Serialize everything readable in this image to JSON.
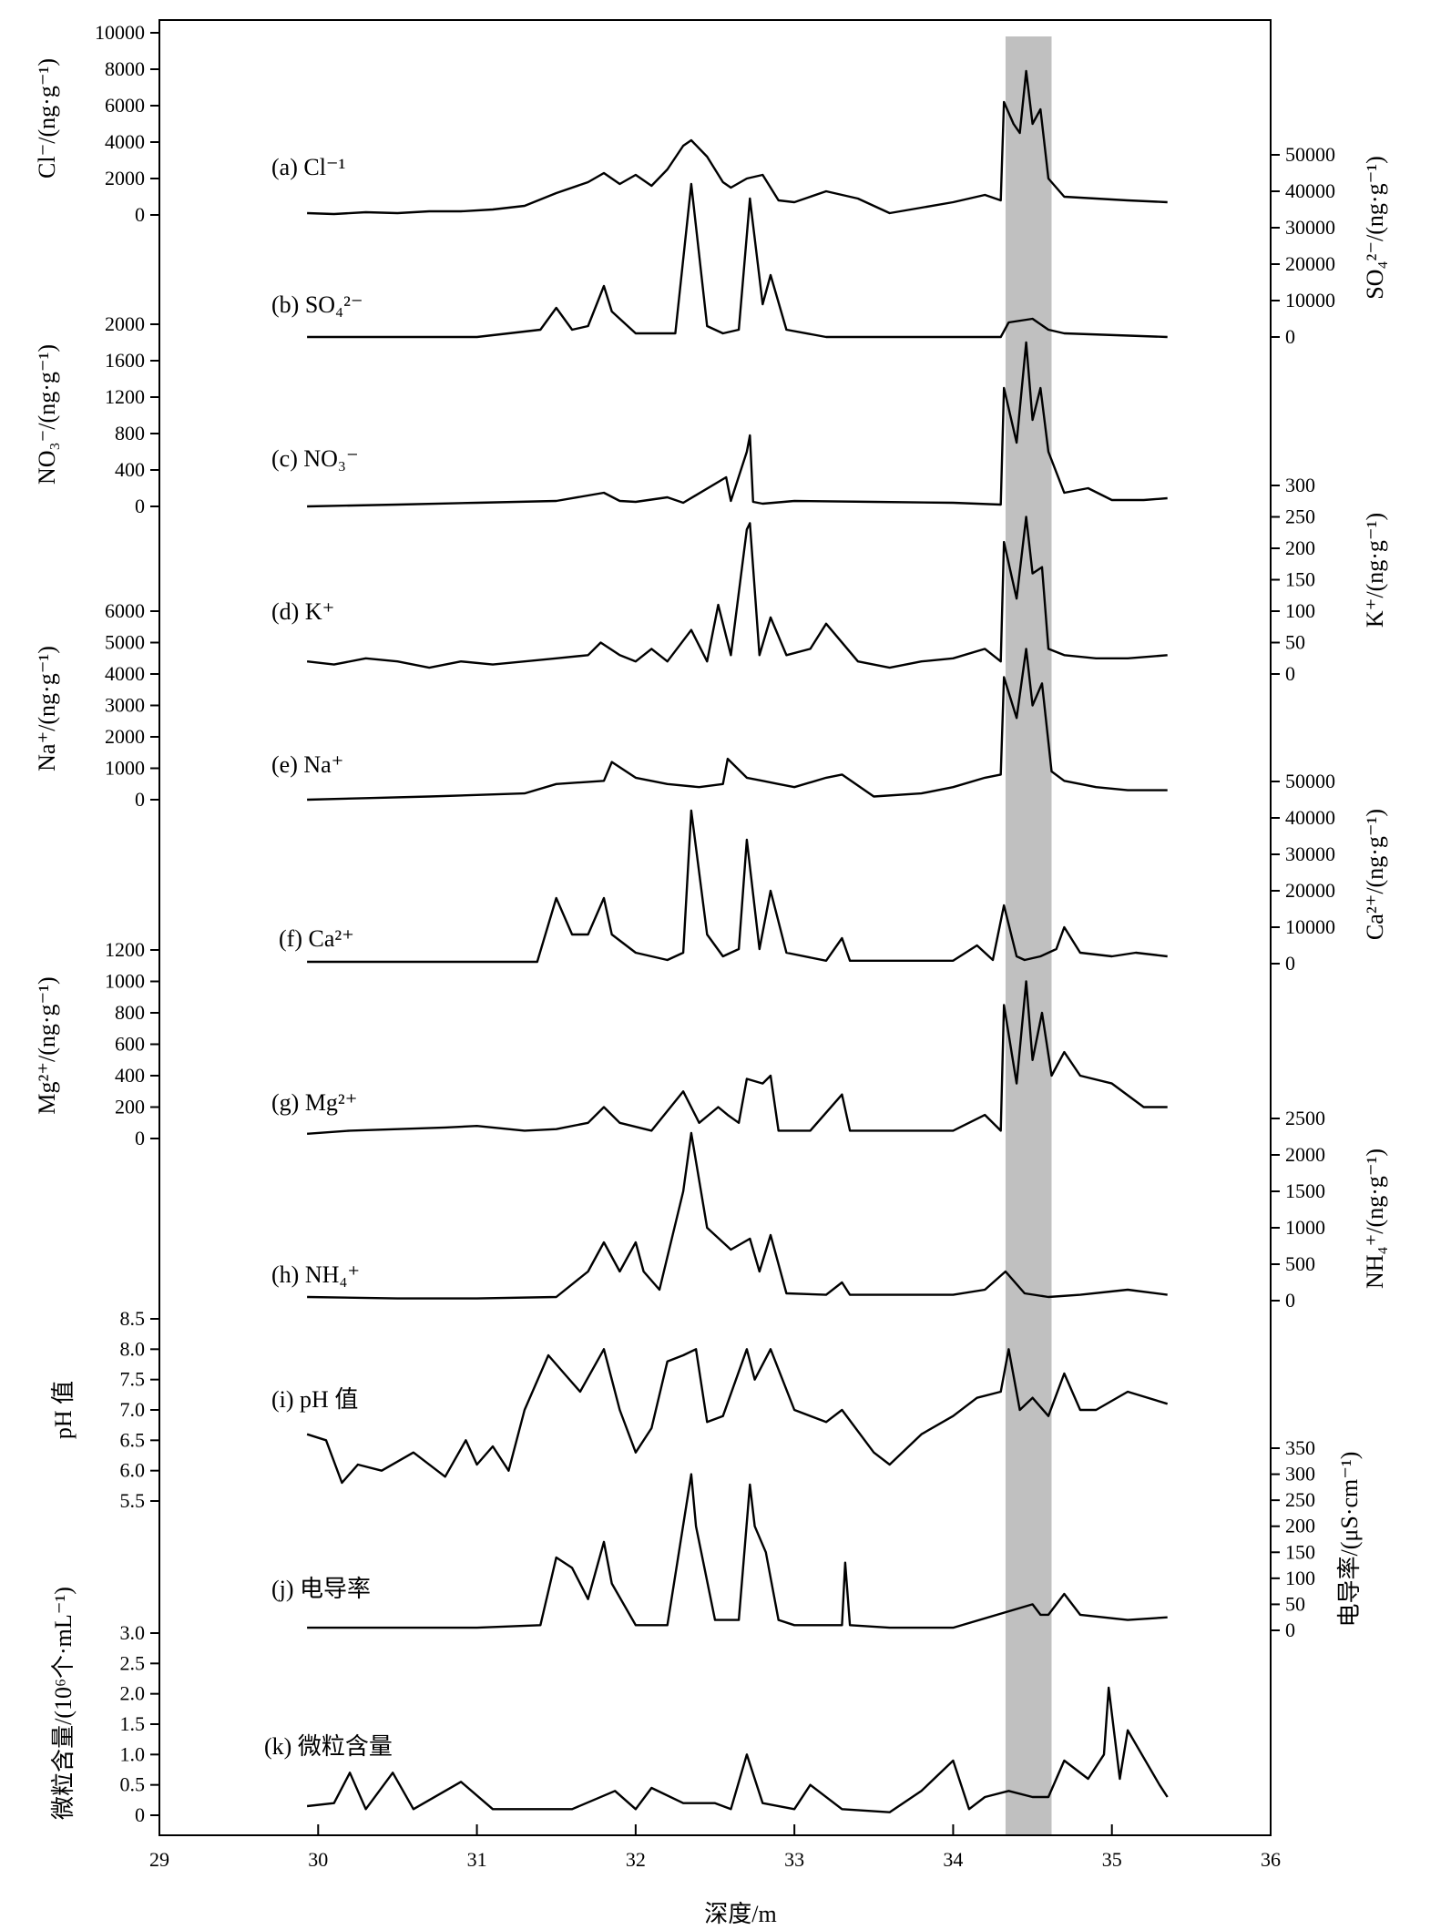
{
  "chart_data": {
    "type": "line",
    "xlabel": "深度/m",
    "xlim": [
      29,
      36
    ],
    "xticks": [
      "29",
      "30",
      "31",
      "32",
      "33",
      "34",
      "35",
      "36"
    ],
    "highlight": {
      "from": 34.33,
      "to": 34.62,
      "color": "#c0c0c0"
    },
    "line_color": "#000000",
    "series": [
      {
        "label": "(a) Cl⁻¹",
        "axis_label": "Cl⁻/(ng·g⁻¹)",
        "side": "left",
        "ticks": [
          "0",
          "2000",
          "4000",
          "6000",
          "8000",
          "10000"
        ],
        "ylim": [
          0,
          10000
        ],
        "x": [
          29.93,
          30.1,
          30.3,
          30.5,
          30.7,
          30.9,
          31.1,
          31.3,
          31.5,
          31.7,
          31.8,
          31.9,
          32.0,
          32.1,
          32.2,
          32.3,
          32.35,
          32.45,
          32.55,
          32.6,
          32.7,
          32.8,
          32.9,
          33.0,
          33.2,
          33.4,
          33.6,
          33.8,
          34.0,
          34.2,
          34.3,
          34.32,
          34.38,
          34.42,
          34.46,
          34.5,
          34.55,
          34.6,
          34.7,
          34.9,
          35.1,
          35.35
        ],
        "values": [
          100,
          50,
          150,
          100,
          200,
          200,
          300,
          500,
          1200,
          1800,
          2300,
          1700,
          2200,
          1600,
          2500,
          3800,
          4100,
          3200,
          1800,
          1500,
          2000,
          2200,
          800,
          700,
          1300,
          900,
          100,
          400,
          700,
          1100,
          800,
          6200,
          5000,
          4500,
          7900,
          5000,
          5800,
          2000,
          1000,
          900,
          800,
          700
        ]
      },
      {
        "label": "(b) SO₄²⁻",
        "axis_label": "SO₄²⁻/(ng·g⁻¹)",
        "side": "right",
        "ticks": [
          "0",
          "10000",
          "20000",
          "30000",
          "40000",
          "50000"
        ],
        "ylim": [
          0,
          50000
        ],
        "x": [
          29.93,
          31.0,
          31.4,
          31.5,
          31.6,
          31.7,
          31.8,
          31.85,
          32.0,
          32.25,
          32.35,
          32.45,
          32.55,
          32.65,
          32.72,
          32.8,
          32.85,
          32.95,
          33.2,
          34.0,
          34.3,
          34.35,
          34.5,
          34.6,
          34.7,
          35.35
        ],
        "values": [
          0,
          0,
          2000,
          8000,
          2000,
          3000,
          14000,
          7000,
          1000,
          1000,
          42000,
          3000,
          1000,
          2000,
          38000,
          9000,
          17000,
          2000,
          0,
          0,
          0,
          4000,
          5000,
          2000,
          1000,
          0
        ]
      },
      {
        "label": "(c) NO₃⁻",
        "axis_label": "NO₃⁻/(ng·g⁻¹)",
        "side": "left",
        "ticks": [
          "0",
          "400",
          "800",
          "1200",
          "1600",
          "2000"
        ],
        "ylim": [
          0,
          2000
        ],
        "x": [
          29.93,
          30.5,
          31.0,
          31.5,
          31.8,
          31.9,
          32.0,
          32.2,
          32.3,
          32.57,
          32.6,
          32.7,
          32.72,
          32.74,
          32.8,
          33.0,
          33.5,
          34.0,
          34.3,
          34.32,
          34.4,
          34.46,
          34.5,
          34.55,
          34.6,
          34.7,
          34.85,
          35.0,
          35.2,
          35.35
        ],
        "values": [
          0,
          20,
          40,
          60,
          150,
          60,
          50,
          100,
          40,
          320,
          60,
          600,
          780,
          50,
          30,
          60,
          50,
          40,
          20,
          1300,
          700,
          1800,
          950,
          1300,
          600,
          150,
          200,
          70,
          70,
          90
        ]
      },
      {
        "label": "(d) K⁺",
        "axis_label": "K⁺/(ng·g⁻¹)",
        "side": "right",
        "ticks": [
          "0",
          "50",
          "100",
          "150",
          "200",
          "250",
          "300"
        ],
        "ylim": [
          0,
          300
        ],
        "x": [
          29.93,
          30.1,
          30.3,
          30.5,
          30.7,
          30.9,
          31.1,
          31.3,
          31.5,
          31.7,
          31.78,
          31.9,
          32.0,
          32.1,
          32.2,
          32.35,
          32.45,
          32.52,
          32.6,
          32.7,
          32.72,
          32.78,
          32.85,
          32.95,
          33.1,
          33.2,
          33.4,
          33.6,
          33.8,
          34.0,
          34.2,
          34.3,
          34.32,
          34.4,
          34.46,
          34.5,
          34.56,
          34.6,
          34.7,
          34.9,
          35.1,
          35.35
        ],
        "values": [
          20,
          15,
          25,
          20,
          10,
          20,
          15,
          20,
          25,
          30,
          50,
          30,
          20,
          40,
          20,
          70,
          20,
          110,
          30,
          230,
          240,
          30,
          90,
          30,
          40,
          80,
          20,
          10,
          20,
          25,
          40,
          20,
          210,
          120,
          250,
          160,
          170,
          40,
          30,
          25,
          25,
          30
        ]
      },
      {
        "label": "(e) Na⁺",
        "axis_label": "Na⁺/(ng·g⁻¹)",
        "side": "left",
        "ticks": [
          "0",
          "1000",
          "2000",
          "3000",
          "4000",
          "5000",
          "6000"
        ],
        "ylim": [
          0,
          6000
        ],
        "x": [
          29.93,
          30.3,
          30.7,
          31.0,
          31.3,
          31.5,
          31.8,
          31.85,
          32.0,
          32.2,
          32.4,
          32.55,
          32.58,
          32.7,
          32.8,
          32.9,
          33.0,
          33.2,
          33.3,
          33.5,
          33.8,
          34.0,
          34.2,
          34.3,
          34.32,
          34.4,
          34.46,
          34.5,
          34.56,
          34.62,
          34.7,
          34.9,
          35.1,
          35.35
        ],
        "values": [
          0,
          50,
          100,
          150,
          200,
          500,
          600,
          1200,
          700,
          500,
          400,
          500,
          1300,
          700,
          600,
          500,
          400,
          700,
          800,
          100,
          200,
          400,
          700,
          800,
          3900,
          2600,
          4800,
          3000,
          3700,
          900,
          600,
          400,
          300,
          300
        ]
      },
      {
        "label": "(f) Ca²⁺",
        "axis_label": "Ca²⁺/(ng·g⁻¹)",
        "side": "right",
        "ticks": [
          "0",
          "10000",
          "20000",
          "30000",
          "40000",
          "50000"
        ],
        "ylim": [
          0,
          50000
        ],
        "x": [
          29.93,
          30.5,
          31.0,
          31.38,
          31.5,
          31.6,
          31.7,
          31.8,
          31.85,
          32.0,
          32.2,
          32.3,
          32.35,
          32.45,
          32.55,
          32.65,
          32.7,
          32.78,
          32.85,
          32.95,
          33.2,
          33.3,
          33.35,
          34.0,
          34.15,
          34.25,
          34.32,
          34.4,
          34.45,
          34.55,
          34.65,
          34.7,
          34.8,
          35.0,
          35.15,
          35.35
        ],
        "values": [
          500,
          500,
          500,
          500,
          18000,
          8000,
          8000,
          18000,
          8000,
          3000,
          1000,
          3000,
          42000,
          8000,
          2000,
          4000,
          34000,
          4000,
          20000,
          3000,
          800,
          7000,
          800,
          800,
          5000,
          1000,
          16000,
          2000,
          1000,
          2000,
          4000,
          10000,
          3000,
          2000,
          3000,
          2000
        ]
      },
      {
        "label": "(g) Mg²⁺",
        "axis_label": "Mg²⁺/(ng·g⁻¹)",
        "side": "left",
        "ticks": [
          "0",
          "200",
          "400",
          "600",
          "800",
          "1000",
          "1200"
        ],
        "ylim": [
          0,
          1200
        ],
        "x": [
          29.93,
          30.2,
          30.5,
          30.8,
          31.0,
          31.3,
          31.5,
          31.7,
          31.8,
          31.9,
          32.1,
          32.3,
          32.4,
          32.52,
          32.58,
          32.65,
          32.7,
          32.8,
          32.85,
          32.9,
          33.1,
          33.3,
          33.35,
          33.6,
          34.0,
          34.2,
          34.3,
          34.32,
          34.4,
          34.46,
          34.5,
          34.56,
          34.62,
          34.7,
          34.8,
          35.0,
          35.2,
          35.35
        ],
        "values": [
          30,
          50,
          60,
          70,
          80,
          50,
          60,
          100,
          200,
          100,
          50,
          300,
          100,
          200,
          150,
          100,
          380,
          350,
          400,
          50,
          50,
          280,
          50,
          50,
          50,
          150,
          50,
          850,
          350,
          1000,
          500,
          800,
          400,
          550,
          400,
          350,
          200,
          200
        ]
      },
      {
        "label": "(h) NH₄⁺",
        "axis_label": "NH₄⁺/(ng·g⁻¹)",
        "side": "right",
        "ticks": [
          "0",
          "500",
          "1000",
          "1500",
          "2000",
          "2500"
        ],
        "ylim": [
          0,
          2500
        ],
        "x": [
          29.93,
          30.5,
          31.0,
          31.5,
          31.7,
          31.8,
          31.9,
          32.0,
          32.05,
          32.15,
          32.3,
          32.35,
          32.45,
          32.6,
          32.72,
          32.78,
          32.85,
          32.95,
          33.2,
          33.3,
          33.35,
          34.0,
          34.2,
          34.33,
          34.45,
          34.6,
          34.8,
          35.1,
          35.35
        ],
        "values": [
          50,
          30,
          30,
          50,
          400,
          800,
          400,
          800,
          400,
          150,
          1500,
          2300,
          1000,
          700,
          850,
          400,
          900,
          100,
          80,
          250,
          80,
          80,
          150,
          400,
          100,
          50,
          80,
          150,
          80
        ]
      },
      {
        "label": "(i) pH 值",
        "axis_label": "pH 值",
        "side": "left",
        "ticks": [
          "5.5",
          "6.0",
          "6.5",
          "7.0",
          "7.5",
          "8.0",
          "8.5"
        ],
        "ylim": [
          5.5,
          8.5
        ],
        "x": [
          29.93,
          30.05,
          30.15,
          30.25,
          30.4,
          30.6,
          30.8,
          30.93,
          31.0,
          31.1,
          31.2,
          31.3,
          31.45,
          31.55,
          31.65,
          31.8,
          31.9,
          32.0,
          32.1,
          32.2,
          32.3,
          32.38,
          32.45,
          32.55,
          32.7,
          32.75,
          32.85,
          33.0,
          33.2,
          33.3,
          33.5,
          33.6,
          33.8,
          34.0,
          34.15,
          34.3,
          34.35,
          34.42,
          34.5,
          34.6,
          34.7,
          34.8,
          34.9,
          35.1,
          35.35
        ],
        "values": [
          6.6,
          6.5,
          5.8,
          6.1,
          6.0,
          6.3,
          5.9,
          6.5,
          6.1,
          6.4,
          6.0,
          7.0,
          7.9,
          7.6,
          7.3,
          8.0,
          7.0,
          6.3,
          6.7,
          7.8,
          7.9,
          8.0,
          6.8,
          6.9,
          8.0,
          7.5,
          8.0,
          7.0,
          6.8,
          7.0,
          6.3,
          6.1,
          6.6,
          6.9,
          7.2,
          7.3,
          8.0,
          7.0,
          7.2,
          6.9,
          7.6,
          7.0,
          7.0,
          7.3,
          7.1
        ]
      },
      {
        "label": "(j) 电导率",
        "axis_label": "电导率/(μS·cm⁻¹)",
        "side": "right",
        "ticks": [
          "0",
          "50",
          "100",
          "150",
          "200",
          "250",
          "300",
          "350"
        ],
        "ylim": [
          0,
          350
        ],
        "x": [
          29.93,
          31.0,
          31.4,
          31.5,
          31.6,
          31.7,
          31.8,
          31.85,
          32.0,
          32.2,
          32.35,
          32.38,
          32.5,
          32.65,
          32.72,
          32.75,
          32.82,
          32.9,
          33.0,
          33.3,
          33.32,
          33.35,
          33.6,
          34.0,
          34.5,
          34.55,
          34.6,
          34.7,
          34.8,
          35.1,
          35.35
        ],
        "values": [
          5,
          5,
          10,
          140,
          120,
          60,
          170,
          90,
          10,
          10,
          300,
          200,
          20,
          20,
          280,
          200,
          150,
          20,
          10,
          10,
          130,
          10,
          5,
          5,
          50,
          30,
          30,
          70,
          30,
          20,
          25
        ]
      },
      {
        "label": "(k) 微粒含量",
        "axis_label": "微粒含量/(10⁶个·mL⁻¹)",
        "side": "left",
        "ticks": [
          "0",
          "0.5",
          "1.0",
          "1.5",
          "2.0",
          "2.5",
          "3.0"
        ],
        "ylim": [
          0,
          3.0
        ],
        "x": [
          29.93,
          30.1,
          30.2,
          30.3,
          30.47,
          30.6,
          30.9,
          31.1,
          31.4,
          31.6,
          31.87,
          32.0,
          32.1,
          32.3,
          32.5,
          32.6,
          32.7,
          32.8,
          33.0,
          33.1,
          33.3,
          33.6,
          33.8,
          34.0,
          34.1,
          34.2,
          34.35,
          34.5,
          34.6,
          34.7,
          34.85,
          34.95,
          34.98,
          35.05,
          35.1,
          35.3,
          35.35
        ],
        "values": [
          0.15,
          0.2,
          0.7,
          0.1,
          0.7,
          0.1,
          0.55,
          0.1,
          0.1,
          0.1,
          0.4,
          0.1,
          0.45,
          0.2,
          0.2,
          0.1,
          1.0,
          0.2,
          0.1,
          0.5,
          0.1,
          0.05,
          0.4,
          0.9,
          0.1,
          0.3,
          0.4,
          0.3,
          0.3,
          0.9,
          0.6,
          1.0,
          2.1,
          0.6,
          1.4,
          0.5,
          0.3
        ]
      }
    ]
  }
}
